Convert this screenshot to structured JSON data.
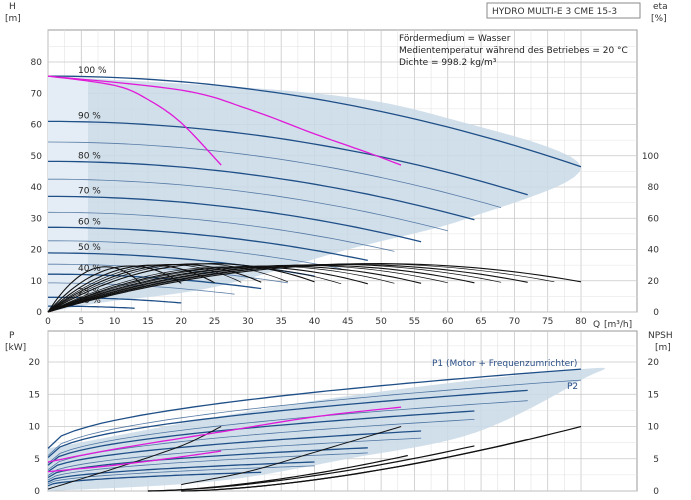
{
  "chart_data": [
    {
      "type": "line",
      "title_box": "HYDRO MULTI-E 3 CME 15-3",
      "ylabel_left": "H",
      "ylabel_left_unit": "[m]",
      "ylabel_right": "eta",
      "ylabel_right_unit": "[%]",
      "xlabel": "Q",
      "xlabel_unit": "[m³/h]",
      "info_lines": [
        "Fördermedium = Wasser",
        "Medientemperatur während des Betriebes = 20 °C",
        "Dichte = 998.2 kg/m³"
      ],
      "xlim": [
        0,
        80
      ],
      "ylim": [
        0,
        80
      ],
      "ylim_right": [
        0,
        100
      ],
      "x_ticks": [
        0,
        5,
        10,
        15,
        20,
        25,
        30,
        35,
        40,
        45,
        50,
        55,
        60,
        65,
        70,
        75,
        80
      ],
      "y_ticks": [
        0,
        10,
        20,
        30,
        40,
        50,
        60,
        70,
        80
      ],
      "y_ticks_right": [
        0,
        20,
        40,
        60,
        80,
        100
      ],
      "grid": true,
      "speed_curves": [
        {
          "label": "100 %",
          "H0": 75.5,
          "Qmax": 80,
          "Hend": 46.5
        },
        {
          "label": "90 %",
          "H0": 61.0,
          "Qmax": 72,
          "Hend": 37.5
        },
        {
          "label": "80 %",
          "H0": 48.2,
          "Qmax": 64,
          "Hend": 29.5
        },
        {
          "label": "70 %",
          "H0": 37.0,
          "Qmax": 56,
          "Hend": 22.5
        },
        {
          "label": "60 %",
          "H0": 27.1,
          "Qmax": 48,
          "Hend": 16.5
        },
        {
          "label": "50 %",
          "H0": 18.9,
          "Qmax": 40,
          "Hend": 11.5
        },
        {
          "label": "40 %",
          "H0": 12.1,
          "Qmax": 32,
          "Hend": 7.5
        },
        {
          "label": "25 %",
          "H0": 4.7,
          "Qmax": 20,
          "Hend": 2.9
        },
        {
          "label": "16 %",
          "H0": 1.9,
          "Qmax": 13,
          "Hend": 1.2
        }
      ],
      "extra_speed_curves": [
        {
          "H0": 54.4,
          "Qmax": 68,
          "Hend": 33.4
        },
        {
          "H0": 42.5,
          "Qmax": 60,
          "Hend": 26.0
        },
        {
          "H0": 31.9,
          "Qmax": 52,
          "Hend": 19.4
        },
        {
          "H0": 22.8,
          "Qmax": 44,
          "Hend": 13.9
        },
        {
          "H0": 15.3,
          "Qmax": 36,
          "Hend": 9.3
        },
        {
          "H0": 9.3,
          "Qmax": 28,
          "Hend": 5.7
        }
      ],
      "efficiency_curves": [
        {
          "Qmax": 80,
          "Hend": 24
        },
        {
          "Qmax": 72,
          "Hend": 25
        },
        {
          "Qmax": 64,
          "Hend": 26
        },
        {
          "Qmax": 56,
          "Hend": 24
        },
        {
          "Qmax": 48,
          "Hend": 22
        },
        {
          "Qmax": 40,
          "Hend": 20
        },
        {
          "Qmax": 32,
          "Hend": 18
        },
        {
          "Qmax": 25,
          "Hend": 15
        },
        {
          "Qmax": 20,
          "Hend": 10
        },
        {
          "Qmax": 14,
          "Hend": 7
        },
        {
          "Qmax": 76,
          "Hend": 23
        },
        {
          "Qmax": 68,
          "Hend": 25
        },
        {
          "Qmax": 60,
          "Hend": 25
        },
        {
          "Qmax": 52,
          "Hend": 23
        },
        {
          "Qmax": 44,
          "Hend": 21
        },
        {
          "Qmax": 36,
          "Hend": 19
        },
        {
          "Qmax": 29,
          "Hend": 16
        }
      ],
      "efficiency_peak": 31,
      "highlight_curves": [
        {
          "points": [
            [
              0,
              75.5
            ],
            [
              10,
              72.5
            ],
            [
              15,
              68
            ],
            [
              20,
              60.5
            ],
            [
              26,
              47
            ]
          ]
        },
        {
          "points": [
            [
              0,
              75.5
            ],
            [
              20,
              71
            ],
            [
              30,
              65
            ],
            [
              40,
              57
            ],
            [
              48,
              51
            ],
            [
              53,
              47
            ]
          ]
        }
      ],
      "operating_region": [
        [
          0,
          75.5
        ],
        [
          40,
          70
        ],
        [
          60,
          62
        ],
        [
          80,
          46.5
        ],
        [
          63,
          30
        ],
        [
          45,
          20
        ],
        [
          25,
          8
        ],
        [
          8,
          3
        ],
        [
          0,
          0
        ]
      ]
    },
    {
      "type": "line",
      "ylabel_left": "P",
      "ylabel_left_unit": "[kW]",
      "ylabel_right": "NPSH",
      "ylabel_right_unit": "[m]",
      "xlim": [
        0,
        80
      ],
      "ylim": [
        0,
        20
      ],
      "y_ticks": [
        0,
        5,
        10,
        15,
        20
      ],
      "legend_p1": "P1 (Motor + Frequenzumrichter)",
      "legend_p2": "P2",
      "p1_curves": [
        {
          "P0": 6.6,
          "Qmax": 80,
          "Pend": 18.9
        },
        {
          "P0": 5.2,
          "Qmax": 72,
          "Pend": 15.6
        },
        {
          "P0": 4.0,
          "Qmax": 64,
          "Pend": 12.4
        },
        {
          "P0": 3.0,
          "Qmax": 56,
          "Pend": 9.3
        },
        {
          "P0": 2.1,
          "Qmax": 48,
          "Pend": 6.7
        },
        {
          "P0": 1.4,
          "Qmax": 40,
          "Pend": 4.5
        },
        {
          "P0": 0.8,
          "Qmax": 32,
          "Pend": 2.9
        }
      ],
      "p2_curves": [
        {
          "P0": 5.5,
          "Qmax": 80,
          "Pend": 17.2
        },
        {
          "P0": 4.3,
          "Qmax": 72,
          "Pend": 14.0
        },
        {
          "P0": 3.3,
          "Qmax": 64,
          "Pend": 11.1
        },
        {
          "P0": 2.4,
          "Qmax": 56,
          "Pend": 8.2
        },
        {
          "P0": 1.7,
          "Qmax": 48,
          "Pend": 5.9
        },
        {
          "P0": 1.1,
          "Qmax": 40,
          "Pend": 3.9
        }
      ],
      "npsh_curves": [
        {
          "Qstart": 20,
          "Qmax": 80,
          "Nend": 10
        },
        {
          "Qstart": 20,
          "Qmax": 72,
          "Nend": 8
        },
        {
          "Qstart": 15,
          "Qmax": 64,
          "Nend": 7
        },
        {
          "Qstart": 15,
          "Qmax": 54,
          "Nend": 5.5
        }
      ],
      "highlight_curves": [
        {
          "points": [
            [
              0,
              4.5
            ],
            [
              10,
              6.5
            ],
            [
              25,
              9.0
            ],
            [
              40,
              11.5
            ],
            [
              53,
              13.0
            ]
          ]
        },
        {
          "points": [
            [
              0,
              3.0
            ],
            [
              10,
              4.0
            ],
            [
              20,
              5.3
            ],
            [
              26,
              6.2
            ]
          ]
        }
      ],
      "black_curves": [
        {
          "points": [
            [
              0,
              0.3
            ],
            [
              10,
              3.5
            ],
            [
              20,
              7
            ],
            [
              26,
              10
            ]
          ]
        },
        {
          "points": [
            [
              20,
              1
            ],
            [
              30,
              3
            ],
            [
              40,
              6
            ],
            [
              53,
              10
            ]
          ]
        }
      ],
      "operating_region": [
        [
          0,
          6.6
        ],
        [
          40,
          14
        ],
        [
          80,
          18.9
        ],
        [
          80,
          17.2
        ],
        [
          64,
          9
        ],
        [
          45,
          5
        ],
        [
          25,
          1.5
        ],
        [
          0,
          0
        ]
      ]
    }
  ]
}
